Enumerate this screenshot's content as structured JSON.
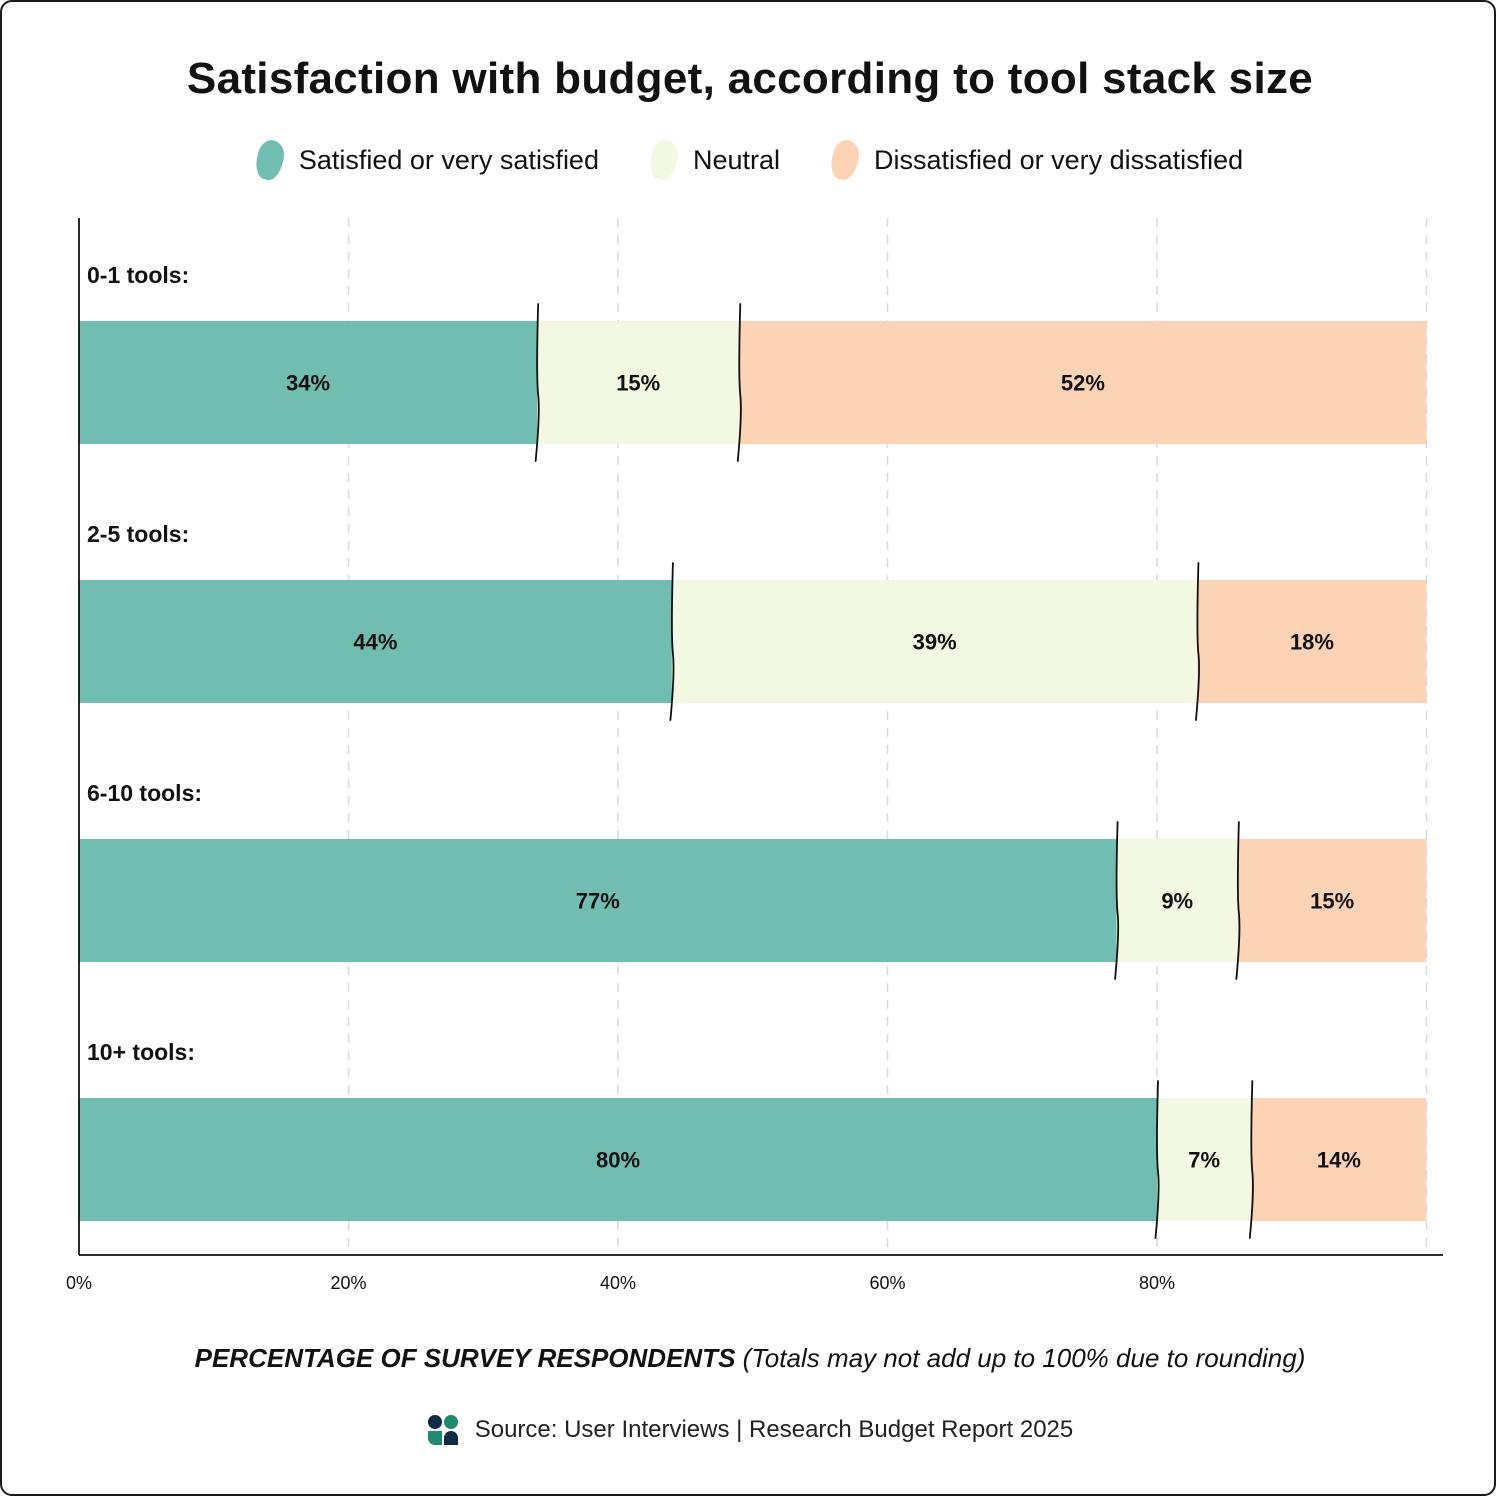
{
  "title": "Satisfaction with budget, according to tool stack size",
  "legend": {
    "items": [
      {
        "label": "Satisfied or very satisfied",
        "color": "#71BDB1"
      },
      {
        "label": "Neutral",
        "color": "#F2F8E1"
      },
      {
        "label": "Dissatisfied or very dissatisfied",
        "color": "#FDD3B5"
      }
    ]
  },
  "axis_caption": {
    "main": "PERCENTAGE OF SURVEY RESPONDENTS",
    "note": "(Totals may not add up to 100% due to rounding)"
  },
  "source": {
    "text": "Source: User Interviews | Research Budget Report 2025",
    "logo_icon": "user-interviews-logo-icon",
    "logo_colors": [
      "#0F2A44",
      "#1F8A70"
    ]
  },
  "chart_data": {
    "type": "bar",
    "orientation": "horizontal",
    "stacked": true,
    "categories": [
      "0-1 tools:",
      "2-5 tools:",
      "6-10 tools:",
      "10+ tools:"
    ],
    "series": [
      {
        "name": "Satisfied or very satisfied",
        "values": [
          34,
          44,
          77,
          80
        ],
        "labels": [
          "34%",
          "44%",
          "77%",
          "80%"
        ],
        "color": "#71BDB1"
      },
      {
        "name": "Neutral",
        "values": [
          15,
          39,
          9,
          7
        ],
        "labels": [
          "15%",
          "39%",
          "9%",
          "7%"
        ],
        "color": "#F2F8E1"
      },
      {
        "name": "Dissatisfied or very dissatisfied",
        "values": [
          52,
          18,
          15,
          14
        ],
        "labels": [
          "52%",
          "18%",
          "15%",
          "14%"
        ],
        "color": "#FDD3B5"
      }
    ],
    "xlim": [
      0,
      100
    ],
    "xticks": [
      0,
      20,
      40,
      60,
      80
    ],
    "xtick_labels": [
      "0%",
      "20%",
      "40%",
      "60%",
      "80%"
    ],
    "grid": true,
    "legend_position": "top"
  }
}
